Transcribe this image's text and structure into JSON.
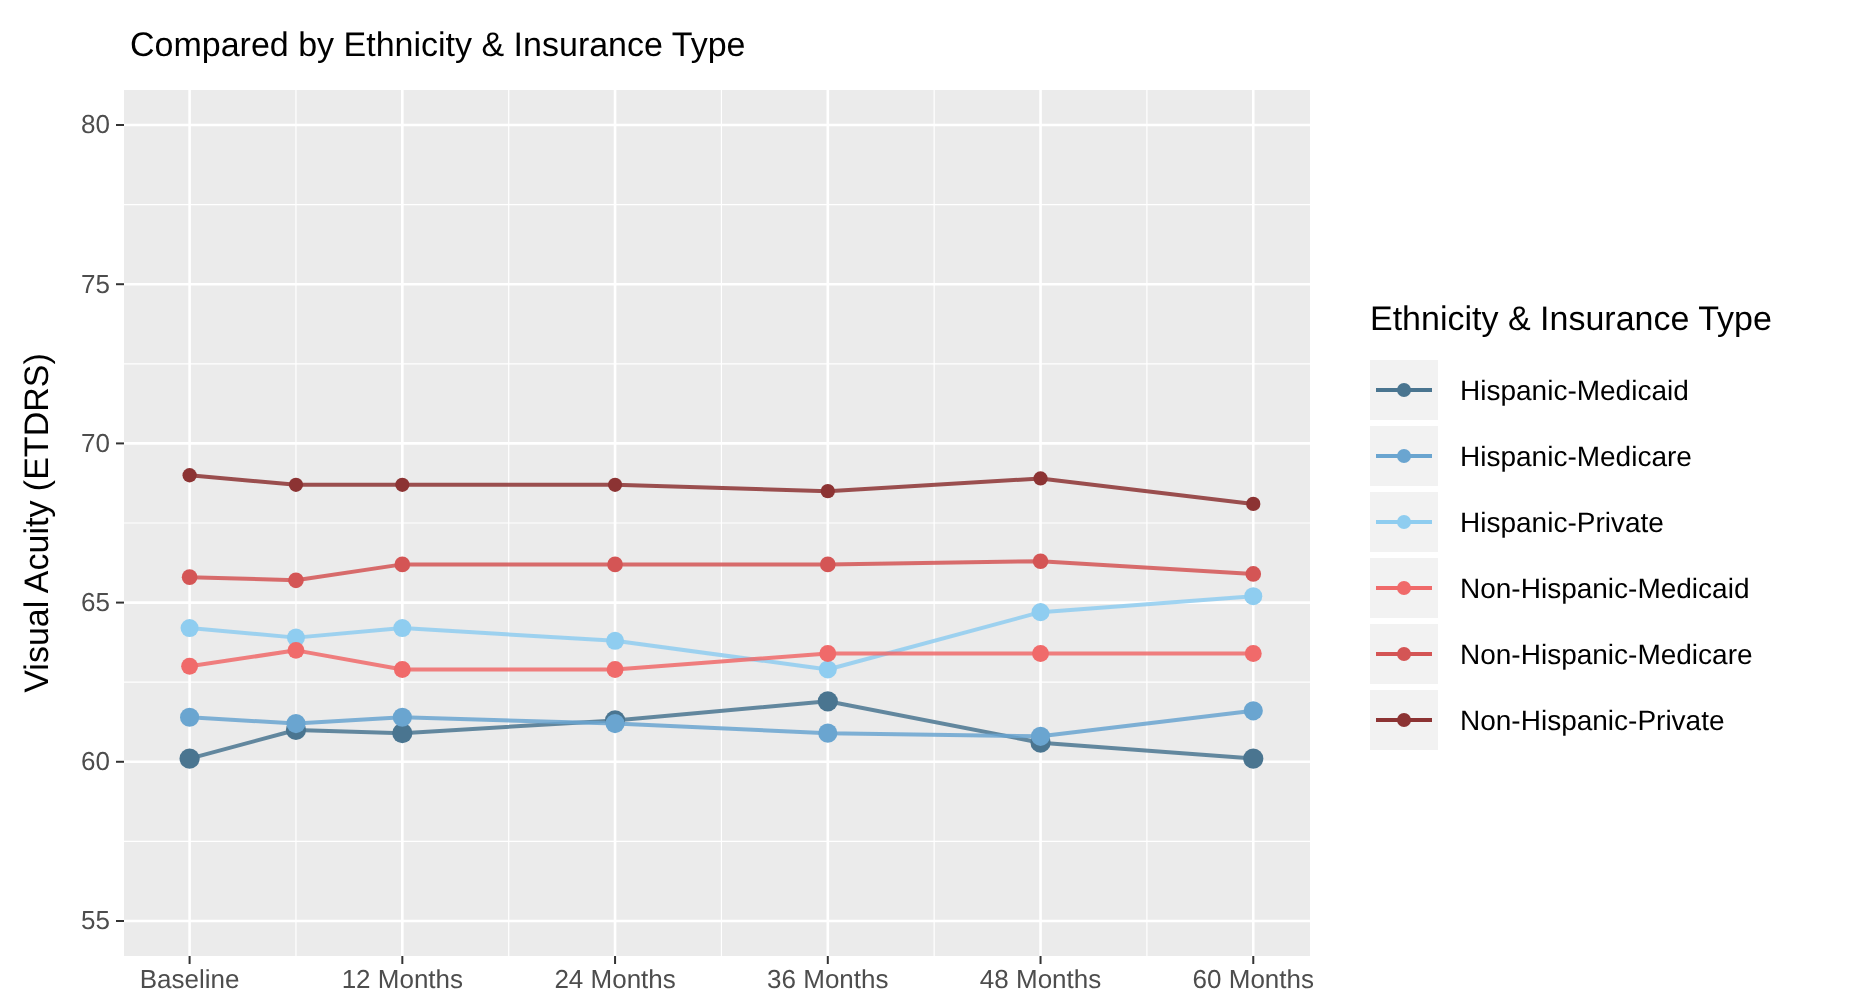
{
  "chart_data": {
    "type": "line",
    "title": "Compared by Ethnicity & Insurance Type",
    "ylabel": "Visual Acuity (ETDRS)",
    "legend_title": "Ethnicity & Insurance Type",
    "legend": "right",
    "grid": true,
    "marker": "circle",
    "line_style": "solid",
    "x": [
      0,
      6,
      12,
      24,
      36,
      48,
      60
    ],
    "xlim": [
      -3.7,
      63.2
    ],
    "xticks": [
      {
        "value": 0,
        "label": "Baseline"
      },
      {
        "value": 12,
        "label": "12 Months"
      },
      {
        "value": 24,
        "label": "24 Months"
      },
      {
        "value": 36,
        "label": "36 Months"
      },
      {
        "value": 48,
        "label": "48 Months"
      },
      {
        "value": 60,
        "label": "60 Months"
      }
    ],
    "ylim": [
      53.9,
      81.1
    ],
    "yticks": [
      55,
      60,
      65,
      70,
      75,
      80
    ],
    "series": [
      {
        "name": "Hispanic-Medicaid",
        "color": "#4a7590",
        "values": [
          60.1,
          61.0,
          60.9,
          61.3,
          61.9,
          60.6,
          60.1
        ]
      },
      {
        "name": "Hispanic-Medicare",
        "color": "#6aa5d0",
        "values": [
          61.4,
          61.2,
          61.4,
          61.2,
          60.9,
          60.8,
          61.6
        ]
      },
      {
        "name": "Hispanic-Private",
        "color": "#8fcdf0",
        "values": [
          64.2,
          63.9,
          64.2,
          63.8,
          62.9,
          64.7,
          65.2
        ]
      },
      {
        "name": "Non-Hispanic-Medicaid",
        "color": "#f06a6a",
        "values": [
          63.0,
          63.5,
          62.9,
          62.9,
          63.4,
          63.4,
          63.4
        ]
      },
      {
        "name": "Non-Hispanic-Medicare",
        "color": "#d45555",
        "values": [
          65.8,
          65.7,
          66.2,
          66.2,
          66.2,
          66.3,
          65.9
        ]
      },
      {
        "name": "Non-Hispanic-Private",
        "color": "#8c3333",
        "values": [
          69.0,
          68.7,
          68.7,
          68.7,
          68.5,
          68.9,
          68.1
        ]
      }
    ]
  }
}
